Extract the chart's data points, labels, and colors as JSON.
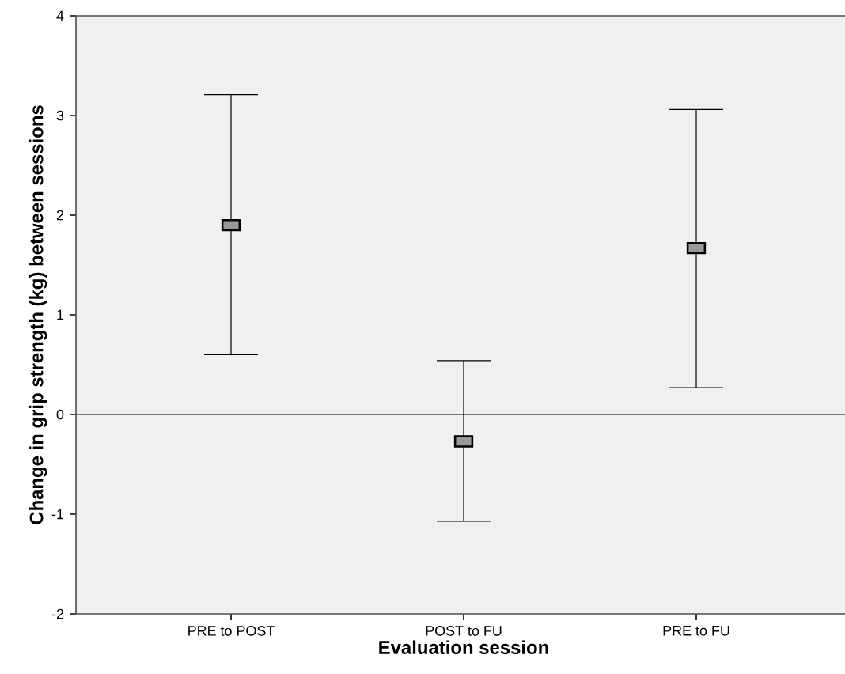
{
  "chart_data": {
    "type": "scatter",
    "xlabel": "Evaluation session",
    "ylabel": "Change in grip strength (kg) between sessions",
    "categories": [
      "PRE to POST",
      "POST to FU",
      "PRE to FU"
    ],
    "values": [
      1.9,
      -0.27,
      1.67
    ],
    "errors": [
      [
        0.6,
        3.21
      ],
      [
        -1.07,
        0.54
      ],
      [
        0.27,
        3.06
      ]
    ],
    "color": "#999999",
    "marker": "square",
    "ylim": [
      -2,
      4
    ],
    "yticks": [
      -2,
      -1,
      0,
      1,
      2,
      3,
      4
    ],
    "ref_lines": [
      {
        "axis": "y",
        "value": 0
      }
    ],
    "grid": false
  }
}
